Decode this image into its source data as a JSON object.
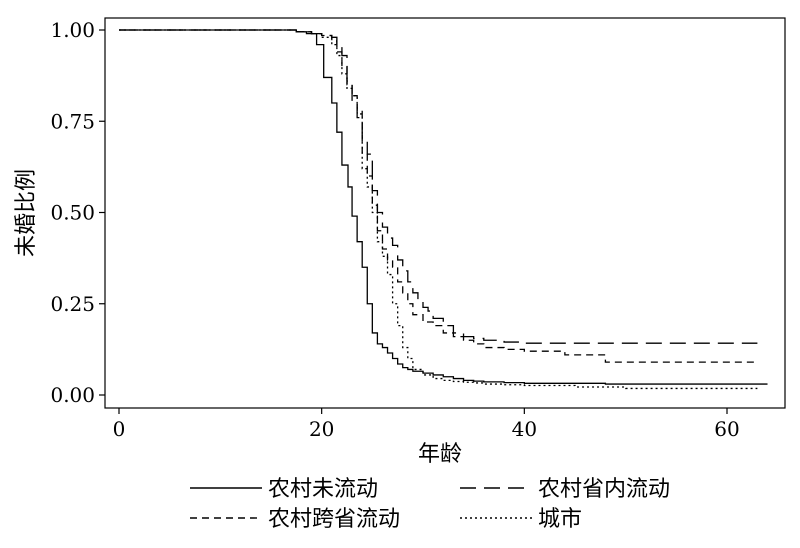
{
  "chart_data": {
    "type": "line",
    "step": true,
    "xlabel": "年龄",
    "ylabel": "未婚比例",
    "xlim": [
      0,
      65
    ],
    "ylim": [
      0,
      1
    ],
    "xticks": [
      0,
      20,
      40,
      60
    ],
    "xtick_labels": [
      "0",
      "20",
      "40",
      "60"
    ],
    "yticks": [
      0,
      0.25,
      0.5,
      0.75,
      1
    ],
    "ytick_labels": [
      "0.00",
      "0.25",
      "0.50",
      "0.75",
      "1.00"
    ],
    "grid": false,
    "legend_position": "bottom",
    "series": [
      {
        "name": "农村未流动",
        "style": "solid",
        "x": [
          0,
          17.5,
          18.5,
          19.5,
          20.2,
          21,
          21.5,
          22,
          22.6,
          23,
          23.5,
          24,
          24.5,
          25,
          25.5,
          26,
          26.5,
          27,
          27.5,
          28,
          28.5,
          29,
          30,
          31,
          32,
          33,
          34,
          35,
          36,
          38,
          40,
          48,
          64
        ],
        "y": [
          1,
          0.995,
          0.99,
          0.96,
          0.87,
          0.8,
          0.72,
          0.63,
          0.57,
          0.49,
          0.42,
          0.35,
          0.25,
          0.17,
          0.14,
          0.13,
          0.115,
          0.1,
          0.085,
          0.075,
          0.07,
          0.065,
          0.06,
          0.055,
          0.05,
          0.045,
          0.04,
          0.038,
          0.036,
          0.034,
          0.032,
          0.03,
          0.03
        ]
      },
      {
        "name": "农村省内流动",
        "style": "long-dash",
        "x": [
          0,
          17.5,
          19,
          20,
          21,
          21.5,
          22,
          22.5,
          23,
          23.5,
          24,
          24.5,
          25,
          25.5,
          26,
          26.5,
          27,
          27.5,
          28,
          28.5,
          29,
          29.5,
          30,
          30.5,
          31,
          32,
          33,
          34,
          35,
          36,
          38,
          40,
          63
        ],
        "y": [
          1,
          0.995,
          0.99,
          0.985,
          0.98,
          0.96,
          0.93,
          0.86,
          0.8,
          0.76,
          0.7,
          0.66,
          0.56,
          0.5,
          0.46,
          0.43,
          0.41,
          0.37,
          0.34,
          0.31,
          0.28,
          0.26,
          0.24,
          0.23,
          0.21,
          0.19,
          0.17,
          0.16,
          0.155,
          0.15,
          0.145,
          0.142,
          0.142
        ]
      },
      {
        "name": "农村跨省流动",
        "style": "dash",
        "x": [
          0,
          17.5,
          19,
          20,
          21,
          21.5,
          22,
          22.5,
          23,
          23.5,
          24,
          24.5,
          25,
          25.5,
          26,
          26.5,
          27,
          27.5,
          28,
          28.5,
          29,
          30,
          31,
          32,
          33,
          34,
          35,
          36,
          38,
          40,
          42,
          44,
          48,
          63
        ],
        "y": [
          1,
          0.995,
          0.99,
          0.985,
          0.97,
          0.94,
          0.9,
          0.85,
          0.82,
          0.78,
          0.66,
          0.6,
          0.52,
          0.45,
          0.4,
          0.37,
          0.35,
          0.31,
          0.28,
          0.25,
          0.22,
          0.2,
          0.19,
          0.17,
          0.16,
          0.15,
          0.14,
          0.13,
          0.125,
          0.12,
          0.12,
          0.11,
          0.09,
          0.09
        ]
      },
      {
        "name": "城市",
        "style": "dotted",
        "x": [
          0,
          17.5,
          19,
          20,
          21,
          21.5,
          22,
          22.5,
          23,
          23.5,
          24,
          24.5,
          25,
          25.5,
          26,
          26.5,
          27,
          27.5,
          28,
          28.5,
          29,
          30,
          31,
          32,
          33,
          34,
          35,
          36,
          38,
          40,
          45,
          50,
          63
        ],
        "y": [
          1,
          0.995,
          0.99,
          0.98,
          0.96,
          0.93,
          0.88,
          0.84,
          0.82,
          0.77,
          0.62,
          0.57,
          0.5,
          0.42,
          0.38,
          0.33,
          0.25,
          0.19,
          0.13,
          0.1,
          0.07,
          0.055,
          0.045,
          0.04,
          0.037,
          0.035,
          0.033,
          0.03,
          0.028,
          0.026,
          0.022,
          0.018,
          0.018
        ]
      }
    ]
  }
}
